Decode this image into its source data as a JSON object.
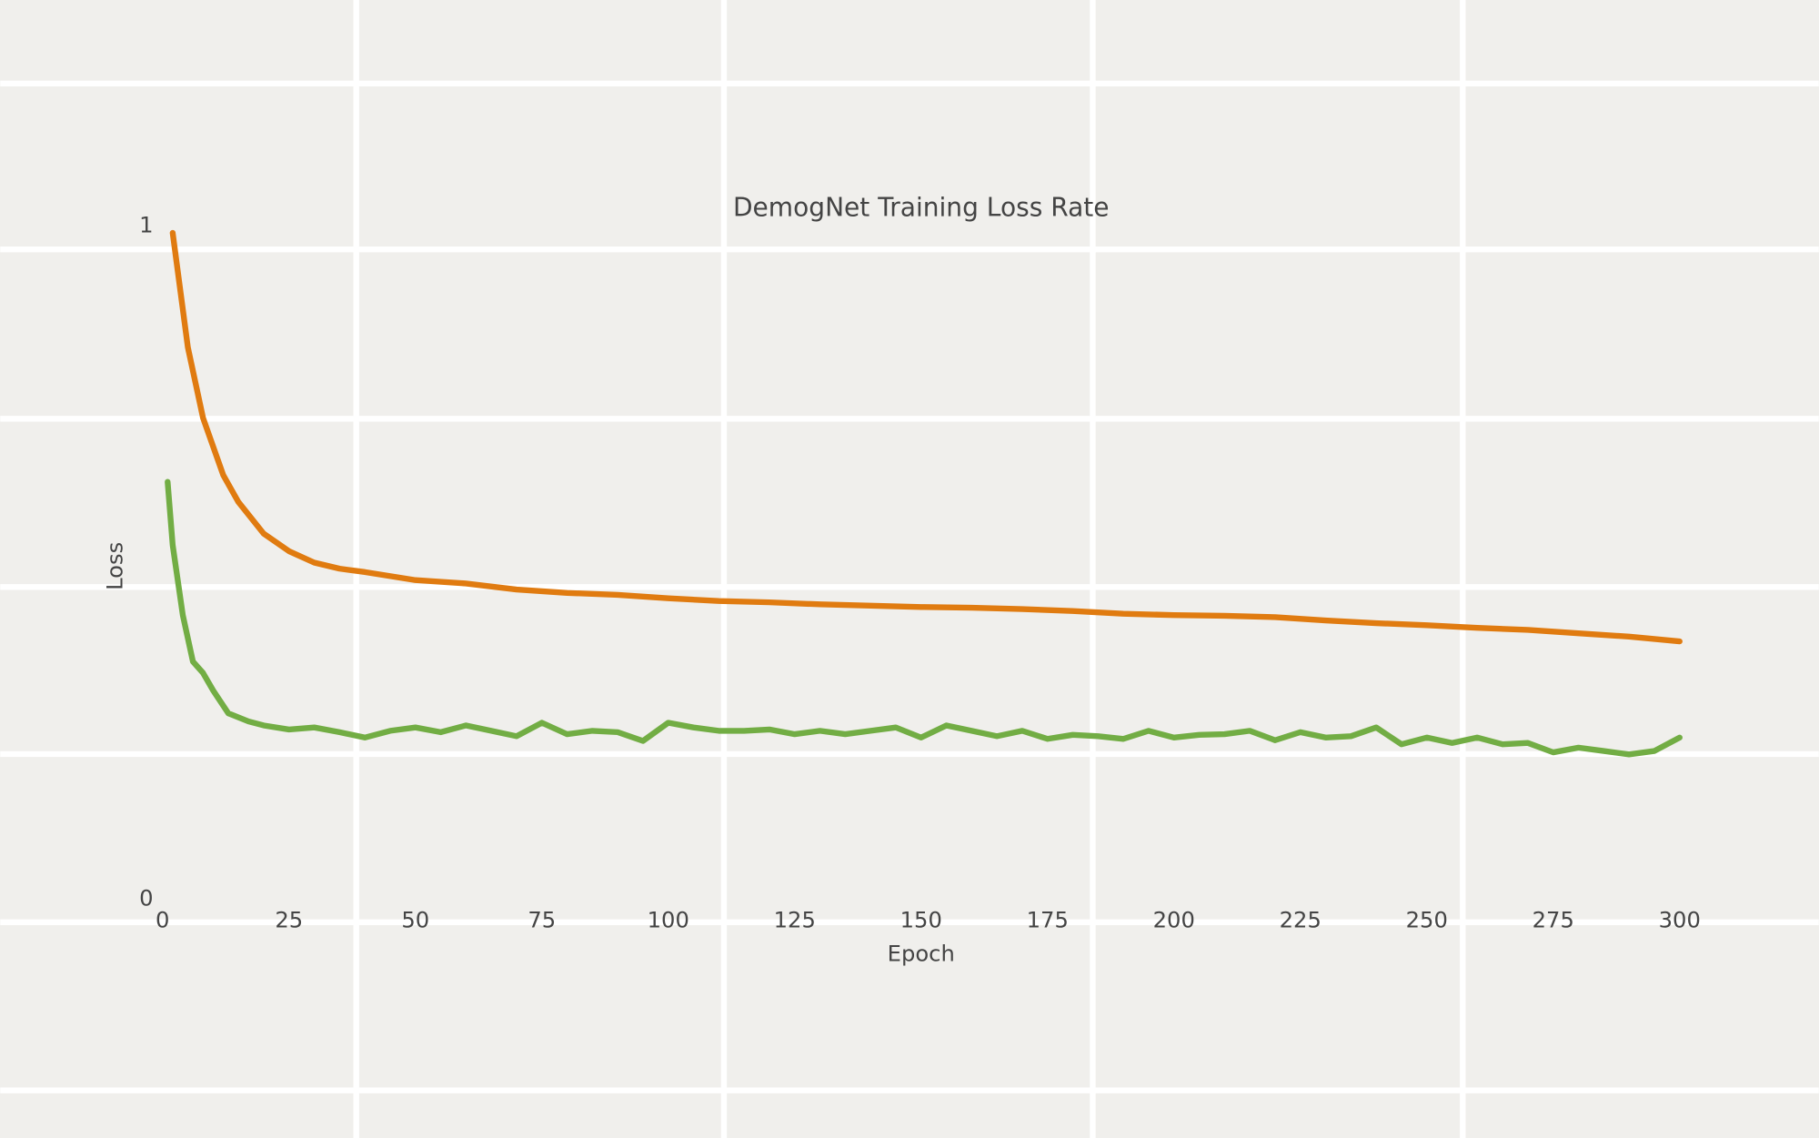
{
  "chart_data": {
    "type": "line",
    "title": "DemogNet Training Loss Rate",
    "xlabel": "Epoch",
    "ylabel": "Loss",
    "xlim": [
      0,
      300
    ],
    "xticks": [
      0,
      25,
      50,
      75,
      100,
      125,
      150,
      175,
      200,
      225,
      250,
      275,
      300
    ],
    "ylim": [
      0,
      1
    ],
    "yticks": [
      0,
      1
    ],
    "series": [
      {
        "color": "#e07b10",
        "x": [
          2,
          5,
          8,
          12,
          15,
          20,
          25,
          30,
          35,
          40,
          50,
          60,
          70,
          80,
          90,
          100,
          110,
          120,
          130,
          140,
          150,
          160,
          170,
          180,
          190,
          200,
          210,
          220,
          230,
          240,
          250,
          260,
          270,
          280,
          290,
          300
        ],
        "values": [
          0.99,
          0.82,
          0.715,
          0.63,
          0.59,
          0.543,
          0.517,
          0.5,
          0.491,
          0.486,
          0.474,
          0.469,
          0.46,
          0.455,
          0.452,
          0.447,
          0.443,
          0.441,
          0.438,
          0.436,
          0.434,
          0.433,
          0.431,
          0.428,
          0.424,
          0.422,
          0.421,
          0.419,
          0.414,
          0.41,
          0.407,
          0.403,
          0.4,
          0.395,
          0.39,
          0.383
        ]
      },
      {
        "color": "#72ad44",
        "x": [
          1,
          2,
          4,
          6,
          8,
          10,
          13,
          17,
          20,
          25,
          30,
          35,
          40,
          45,
          50,
          55,
          60,
          65,
          70,
          75,
          80,
          85,
          90,
          95,
          100,
          105,
          110,
          115,
          120,
          125,
          130,
          135,
          140,
          145,
          150,
          155,
          160,
          165,
          170,
          175,
          180,
          185,
          190,
          195,
          200,
          205,
          210,
          215,
          220,
          225,
          230,
          235,
          240,
          245,
          250,
          255,
          260,
          265,
          270,
          275,
          280,
          285,
          290,
          295,
          300
        ],
        "values": [
          0.62,
          0.526,
          0.422,
          0.353,
          0.336,
          0.31,
          0.276,
          0.264,
          0.258,
          0.252,
          0.255,
          0.248,
          0.24,
          0.25,
          0.255,
          0.248,
          0.258,
          0.25,
          0.242,
          0.262,
          0.245,
          0.25,
          0.248,
          0.235,
          0.262,
          0.255,
          0.25,
          0.25,
          0.252,
          0.245,
          0.25,
          0.245,
          0.25,
          0.255,
          0.24,
          0.258,
          0.25,
          0.242,
          0.25,
          0.238,
          0.244,
          0.242,
          0.238,
          0.25,
          0.24,
          0.244,
          0.245,
          0.25,
          0.236,
          0.248,
          0.24,
          0.242,
          0.255,
          0.23,
          0.24,
          0.232,
          0.24,
          0.23,
          0.232,
          0.218,
          0.225,
          0.22,
          0.215,
          0.22,
          0.24
        ]
      }
    ]
  }
}
